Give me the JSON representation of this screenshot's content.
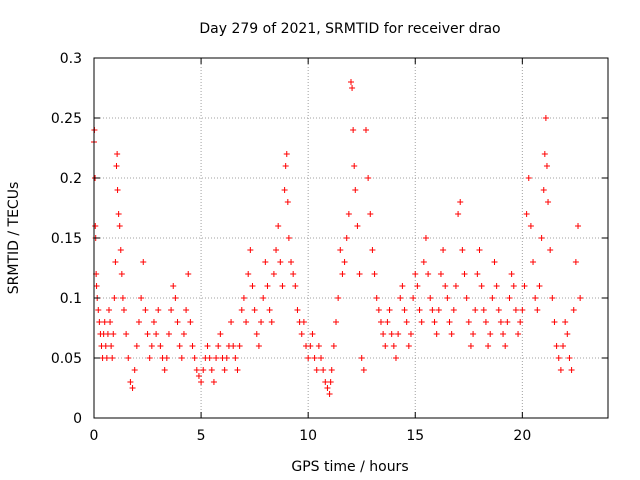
{
  "chart_data": {
    "type": "scatter",
    "title": "Day 279 of 2021, SRMTID for receiver drao",
    "xlabel": "GPS time / hours",
    "ylabel": "SRMTID / TECUs",
    "xlim": [
      0,
      24
    ],
    "ylim": [
      0,
      0.3
    ],
    "grid": true,
    "marker": "+",
    "x_ticks": [
      0,
      5,
      10,
      15,
      20
    ],
    "x_tick_labels": [
      "0",
      "5",
      "10",
      "15",
      "20"
    ],
    "y_ticks": [
      0,
      0.05,
      0.1,
      0.15,
      0.2,
      0.25,
      0.3
    ],
    "y_tick_labels": [
      "0",
      "0.05",
      "0.1",
      "0.15",
      "0.2",
      "0.25",
      "0.3"
    ],
    "colors": {
      "points": "#ff0000",
      "grid": "#a0a0a0",
      "axis": "#000000"
    },
    "series": [
      {
        "name": "drao",
        "points": [
          [
            0.0,
            0.23
          ],
          [
            0.02,
            0.24
          ],
          [
            0.05,
            0.2
          ],
          [
            0.06,
            0.16
          ],
          [
            0.08,
            0.15
          ],
          [
            0.1,
            0.12
          ],
          [
            0.12,
            0.11
          ],
          [
            0.15,
            0.1
          ],
          [
            0.2,
            0.09
          ],
          [
            0.25,
            0.08
          ],
          [
            0.3,
            0.07
          ],
          [
            0.35,
            0.06
          ],
          [
            0.4,
            0.05
          ],
          [
            0.45,
            0.07
          ],
          [
            0.5,
            0.08
          ],
          [
            0.55,
            0.06
          ],
          [
            0.6,
            0.05
          ],
          [
            0.65,
            0.07
          ],
          [
            0.7,
            0.09
          ],
          [
            0.75,
            0.08
          ],
          [
            0.8,
            0.06
          ],
          [
            0.85,
            0.05
          ],
          [
            0.9,
            0.07
          ],
          [
            0.95,
            0.1
          ],
          [
            1.0,
            0.13
          ],
          [
            1.05,
            0.21
          ],
          [
            1.08,
            0.22
          ],
          [
            1.1,
            0.19
          ],
          [
            1.15,
            0.17
          ],
          [
            1.2,
            0.16
          ],
          [
            1.25,
            0.14
          ],
          [
            1.3,
            0.12
          ],
          [
            1.35,
            0.1
          ],
          [
            1.4,
            0.09
          ],
          [
            1.5,
            0.07
          ],
          [
            1.6,
            0.05
          ],
          [
            1.7,
            0.03
          ],
          [
            1.8,
            0.025
          ],
          [
            1.9,
            0.04
          ],
          [
            2.0,
            0.06
          ],
          [
            2.1,
            0.08
          ],
          [
            2.2,
            0.1
          ],
          [
            2.3,
            0.13
          ],
          [
            2.4,
            0.09
          ],
          [
            2.5,
            0.07
          ],
          [
            2.6,
            0.05
          ],
          [
            2.7,
            0.06
          ],
          [
            2.8,
            0.08
          ],
          [
            2.9,
            0.07
          ],
          [
            3.0,
            0.09
          ],
          [
            3.1,
            0.06
          ],
          [
            3.2,
            0.05
          ],
          [
            3.3,
            0.04
          ],
          [
            3.4,
            0.05
          ],
          [
            3.5,
            0.07
          ],
          [
            3.6,
            0.09
          ],
          [
            3.7,
            0.11
          ],
          [
            3.8,
            0.1
          ],
          [
            3.9,
            0.08
          ],
          [
            4.0,
            0.06
          ],
          [
            4.1,
            0.05
          ],
          [
            4.2,
            0.07
          ],
          [
            4.3,
            0.09
          ],
          [
            4.4,
            0.12
          ],
          [
            4.5,
            0.08
          ],
          [
            4.6,
            0.06
          ],
          [
            4.7,
            0.05
          ],
          [
            4.8,
            0.04
          ],
          [
            4.9,
            0.035
          ],
          [
            5.0,
            0.03
          ],
          [
            5.1,
            0.04
          ],
          [
            5.2,
            0.05
          ],
          [
            5.3,
            0.06
          ],
          [
            5.4,
            0.05
          ],
          [
            5.5,
            0.04
          ],
          [
            5.6,
            0.03
          ],
          [
            5.7,
            0.05
          ],
          [
            5.8,
            0.06
          ],
          [
            5.9,
            0.07
          ],
          [
            6.0,
            0.05
          ],
          [
            6.1,
            0.04
          ],
          [
            6.2,
            0.05
          ],
          [
            6.3,
            0.06
          ],
          [
            6.4,
            0.08
          ],
          [
            6.5,
            0.06
          ],
          [
            6.6,
            0.05
          ],
          [
            6.7,
            0.04
          ],
          [
            6.8,
            0.06
          ],
          [
            6.9,
            0.09
          ],
          [
            7.0,
            0.1
          ],
          [
            7.1,
            0.08
          ],
          [
            7.2,
            0.12
          ],
          [
            7.3,
            0.14
          ],
          [
            7.4,
            0.11
          ],
          [
            7.5,
            0.09
          ],
          [
            7.6,
            0.07
          ],
          [
            7.7,
            0.06
          ],
          [
            7.8,
            0.08
          ],
          [
            7.9,
            0.1
          ],
          [
            8.0,
            0.13
          ],
          [
            8.1,
            0.11
          ],
          [
            8.2,
            0.09
          ],
          [
            8.3,
            0.08
          ],
          [
            8.4,
            0.12
          ],
          [
            8.5,
            0.14
          ],
          [
            8.6,
            0.16
          ],
          [
            8.7,
            0.13
          ],
          [
            8.8,
            0.11
          ],
          [
            8.9,
            0.19
          ],
          [
            8.95,
            0.21
          ],
          [
            9.0,
            0.22
          ],
          [
            9.05,
            0.18
          ],
          [
            9.1,
            0.15
          ],
          [
            9.2,
            0.13
          ],
          [
            9.3,
            0.12
          ],
          [
            9.4,
            0.11
          ],
          [
            9.5,
            0.09
          ],
          [
            9.6,
            0.08
          ],
          [
            9.7,
            0.07
          ],
          [
            9.8,
            0.08
          ],
          [
            9.9,
            0.06
          ],
          [
            10.0,
            0.05
          ],
          [
            10.1,
            0.06
          ],
          [
            10.2,
            0.07
          ],
          [
            10.3,
            0.05
          ],
          [
            10.4,
            0.04
          ],
          [
            10.5,
            0.06
          ],
          [
            10.6,
            0.05
          ],
          [
            10.7,
            0.04
          ],
          [
            10.8,
            0.03
          ],
          [
            10.9,
            0.025
          ],
          [
            11.0,
            0.02
          ],
          [
            11.05,
            0.03
          ],
          [
            11.1,
            0.04
          ],
          [
            11.2,
            0.06
          ],
          [
            11.3,
            0.08
          ],
          [
            11.4,
            0.1
          ],
          [
            11.5,
            0.14
          ],
          [
            11.6,
            0.12
          ],
          [
            11.7,
            0.13
          ],
          [
            11.8,
            0.15
          ],
          [
            11.9,
            0.17
          ],
          [
            12.0,
            0.28
          ],
          [
            12.05,
            0.275
          ],
          [
            12.1,
            0.24
          ],
          [
            12.15,
            0.21
          ],
          [
            12.2,
            0.19
          ],
          [
            12.3,
            0.16
          ],
          [
            12.4,
            0.12
          ],
          [
            12.5,
            0.05
          ],
          [
            12.6,
            0.04
          ],
          [
            12.7,
            0.24
          ],
          [
            12.8,
            0.2
          ],
          [
            12.9,
            0.17
          ],
          [
            13.0,
            0.14
          ],
          [
            13.1,
            0.12
          ],
          [
            13.2,
            0.1
          ],
          [
            13.3,
            0.09
          ],
          [
            13.4,
            0.08
          ],
          [
            13.5,
            0.07
          ],
          [
            13.6,
            0.06
          ],
          [
            13.7,
            0.08
          ],
          [
            13.8,
            0.09
          ],
          [
            13.9,
            0.07
          ],
          [
            14.0,
            0.06
          ],
          [
            14.1,
            0.05
          ],
          [
            14.2,
            0.07
          ],
          [
            14.3,
            0.1
          ],
          [
            14.4,
            0.11
          ],
          [
            14.5,
            0.09
          ],
          [
            14.6,
            0.08
          ],
          [
            14.7,
            0.06
          ],
          [
            14.8,
            0.07
          ],
          [
            14.9,
            0.1
          ],
          [
            15.0,
            0.12
          ],
          [
            15.1,
            0.11
          ],
          [
            15.2,
            0.09
          ],
          [
            15.3,
            0.08
          ],
          [
            15.4,
            0.13
          ],
          [
            15.5,
            0.15
          ],
          [
            15.6,
            0.12
          ],
          [
            15.7,
            0.1
          ],
          [
            15.8,
            0.09
          ],
          [
            15.9,
            0.08
          ],
          [
            16.0,
            0.07
          ],
          [
            16.1,
            0.09
          ],
          [
            16.2,
            0.12
          ],
          [
            16.3,
            0.14
          ],
          [
            16.4,
            0.11
          ],
          [
            16.5,
            0.1
          ],
          [
            16.6,
            0.08
          ],
          [
            16.7,
            0.07
          ],
          [
            16.8,
            0.09
          ],
          [
            16.9,
            0.11
          ],
          [
            17.0,
            0.17
          ],
          [
            17.1,
            0.18
          ],
          [
            17.2,
            0.14
          ],
          [
            17.3,
            0.12
          ],
          [
            17.4,
            0.1
          ],
          [
            17.5,
            0.08
          ],
          [
            17.6,
            0.06
          ],
          [
            17.7,
            0.07
          ],
          [
            17.8,
            0.09
          ],
          [
            17.9,
            0.12
          ],
          [
            18.0,
            0.14
          ],
          [
            18.1,
            0.11
          ],
          [
            18.2,
            0.09
          ],
          [
            18.3,
            0.08
          ],
          [
            18.4,
            0.06
          ],
          [
            18.5,
            0.07
          ],
          [
            18.6,
            0.1
          ],
          [
            18.7,
            0.13
          ],
          [
            18.8,
            0.11
          ],
          [
            18.9,
            0.09
          ],
          [
            19.0,
            0.08
          ],
          [
            19.1,
            0.07
          ],
          [
            19.2,
            0.06
          ],
          [
            19.3,
            0.08
          ],
          [
            19.4,
            0.1
          ],
          [
            19.5,
            0.12
          ],
          [
            19.6,
            0.11
          ],
          [
            19.7,
            0.09
          ],
          [
            19.8,
            0.07
          ],
          [
            19.9,
            0.08
          ],
          [
            20.0,
            0.09
          ],
          [
            20.1,
            0.11
          ],
          [
            20.2,
            0.17
          ],
          [
            20.3,
            0.2
          ],
          [
            20.4,
            0.16
          ],
          [
            20.5,
            0.13
          ],
          [
            20.6,
            0.1
          ],
          [
            20.7,
            0.09
          ],
          [
            20.8,
            0.11
          ],
          [
            20.9,
            0.15
          ],
          [
            21.0,
            0.19
          ],
          [
            21.05,
            0.22
          ],
          [
            21.1,
            0.25
          ],
          [
            21.15,
            0.21
          ],
          [
            21.2,
            0.18
          ],
          [
            21.3,
            0.14
          ],
          [
            21.4,
            0.1
          ],
          [
            21.5,
            0.08
          ],
          [
            21.6,
            0.06
          ],
          [
            21.7,
            0.05
          ],
          [
            21.8,
            0.04
          ],
          [
            21.9,
            0.06
          ],
          [
            22.0,
            0.08
          ],
          [
            22.1,
            0.07
          ],
          [
            22.2,
            0.05
          ],
          [
            22.3,
            0.04
          ],
          [
            22.4,
            0.09
          ],
          [
            22.5,
            0.13
          ],
          [
            22.6,
            0.16
          ],
          [
            22.7,
            0.1
          ]
        ]
      }
    ]
  }
}
